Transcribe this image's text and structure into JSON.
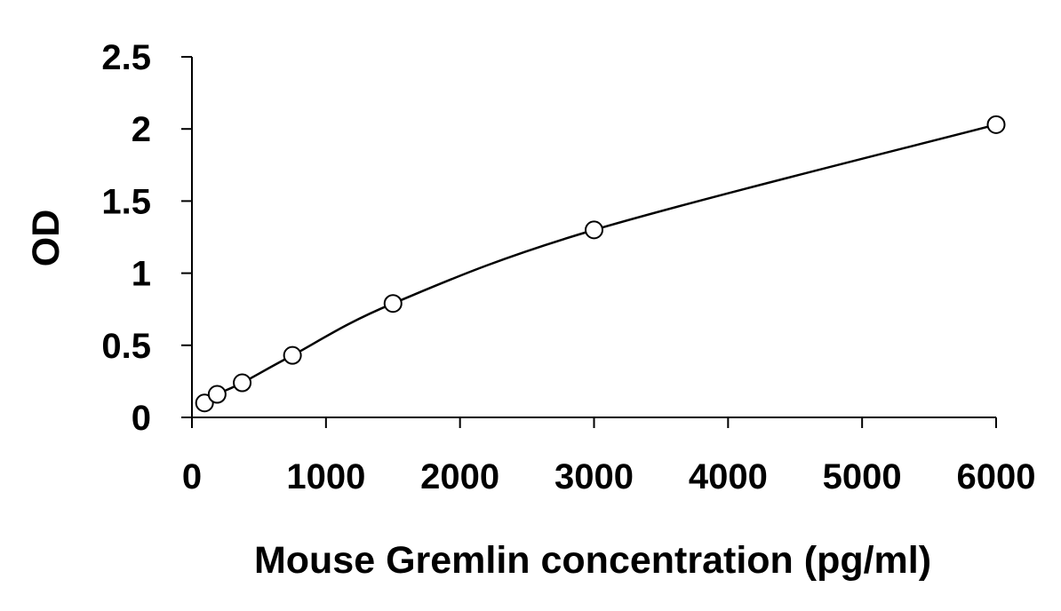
{
  "chart_data": {
    "type": "scatter",
    "title": "",
    "xlabel": "Mouse Gremlin concentration (pg/ml)",
    "ylabel": "OD",
    "xlim": [
      0,
      6000
    ],
    "ylim": [
      0,
      2.5
    ],
    "x_ticks": [
      0,
      1000,
      2000,
      3000,
      4000,
      5000,
      6000
    ],
    "x_tick_labels": [
      "0",
      "1000",
      "2000",
      "3000",
      "4000",
      "5000",
      "6000"
    ],
    "y_ticks": [
      0,
      0.5,
      1,
      1.5,
      2,
      2.5
    ],
    "y_tick_labels": [
      "0",
      "0.5",
      "1",
      "1.5",
      "2",
      "2.5"
    ],
    "grid": false,
    "legend": "none",
    "series": [
      {
        "marker": "open-circle",
        "fit_line": true,
        "x": [
          94,
          188,
          375,
          750,
          1500,
          3000,
          6000
        ],
        "y": [
          0.1,
          0.16,
          0.24,
          0.43,
          0.79,
          1.3,
          2.03
        ]
      }
    ]
  }
}
